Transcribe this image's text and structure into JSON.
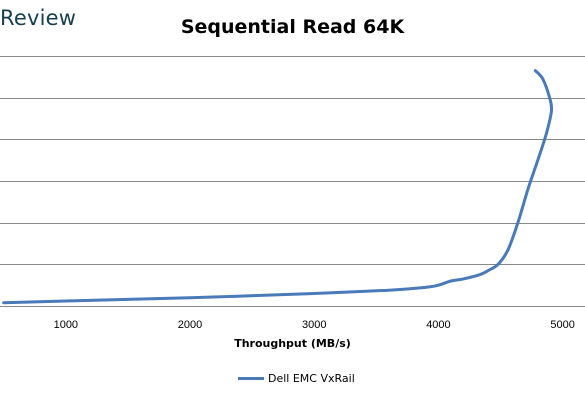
{
  "brand": "Review",
  "colors": {
    "series": "#4a7ab8",
    "grid": "#888888"
  },
  "chart_data": {
    "type": "line",
    "title": "Sequential Read 64K",
    "xlabel": "Throughput (MB/s)",
    "ylabel": "",
    "xlim": [
      470,
      5180
    ],
    "ylim": [
      0,
      6
    ],
    "x_ticks": [
      "1000",
      "2000",
      "3000",
      "4000",
      "5000"
    ],
    "grid": "horizontal",
    "legend_position": "bottom",
    "series": [
      {
        "name": "Dell EMC VxRail",
        "points": [
          [
            500,
            0.08
          ],
          [
            1000,
            0.12
          ],
          [
            2000,
            0.2
          ],
          [
            3000,
            0.3
          ],
          [
            3600,
            0.38
          ],
          [
            3900,
            0.45
          ],
          [
            4000,
            0.5
          ],
          [
            4100,
            0.6
          ],
          [
            4200,
            0.65
          ],
          [
            4330,
            0.75
          ],
          [
            4400,
            0.85
          ],
          [
            4480,
            1.0
          ],
          [
            4560,
            1.35
          ],
          [
            4640,
            2.0
          ],
          [
            4720,
            2.8
          ],
          [
            4800,
            3.5
          ],
          [
            4870,
            4.15
          ],
          [
            4910,
            4.7
          ],
          [
            4890,
            5.05
          ],
          [
            4840,
            5.45
          ],
          [
            4780,
            5.65
          ]
        ]
      }
    ]
  }
}
